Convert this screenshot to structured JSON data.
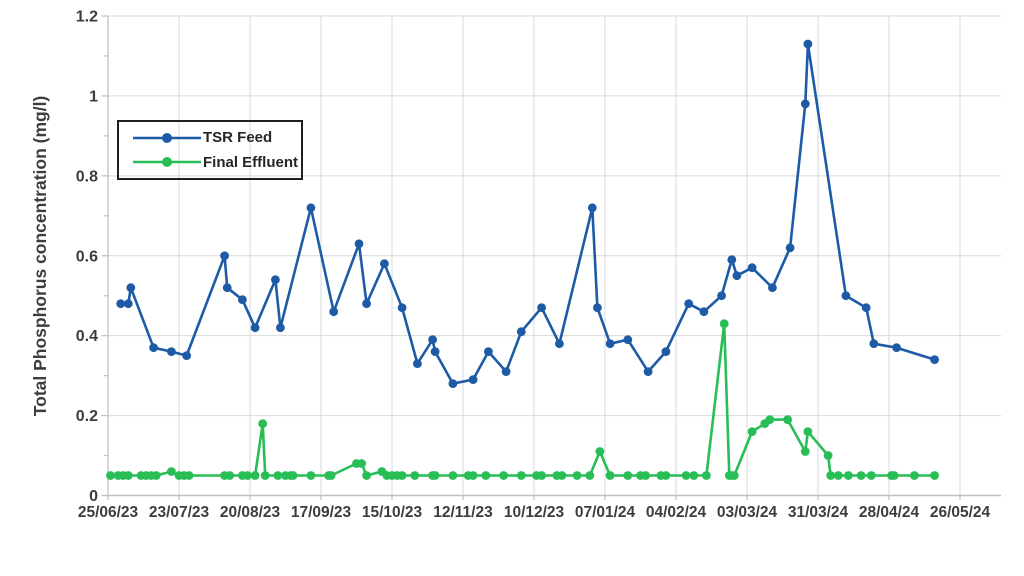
{
  "chart_data": {
    "type": "line",
    "title": "",
    "xlabel": "",
    "ylabel": "Total Phosphorus concentration (mg/l)",
    "ylim": [
      0,
      1.2
    ],
    "y_ticks": [
      0,
      0.2,
      0.4,
      0.6,
      0.8,
      1,
      1.2
    ],
    "y_tick_labels": [
      "0",
      "0.2",
      "0.4",
      "0.6",
      "0.8",
      "1",
      "1.2"
    ],
    "x_tick_labels": [
      "25/06/23",
      "23/07/23",
      "20/08/23",
      "17/09/23",
      "15/10/23",
      "12/11/23",
      "10/12/23",
      "07/01/24",
      "04/02/24",
      "03/03/24",
      "31/03/24",
      "28/04/24",
      "26/05/24"
    ],
    "x_start_date": "25/06/23",
    "x_end_date": "26/05/24",
    "x_tick_interval_days": 28,
    "grid": true,
    "legend_position": "top-left-inside",
    "series": [
      {
        "name": "TSR Feed",
        "color": "#1d5ba6",
        "marker": "circle",
        "points": [
          [
            "30/06/23",
            0.48
          ],
          [
            "03/07/23",
            0.48
          ],
          [
            "04/07/23",
            0.52
          ],
          [
            "13/07/23",
            0.37
          ],
          [
            "20/07/23",
            0.36
          ],
          [
            "26/07/23",
            0.35
          ],
          [
            "10/08/23",
            0.6
          ],
          [
            "11/08/23",
            0.52
          ],
          [
            "17/08/23",
            0.49
          ],
          [
            "22/08/23",
            0.42
          ],
          [
            "30/08/23",
            0.54
          ],
          [
            "01/09/23",
            0.42
          ],
          [
            "13/09/23",
            0.72
          ],
          [
            "22/09/23",
            0.46
          ],
          [
            "02/10/23",
            0.63
          ],
          [
            "05/10/23",
            0.48
          ],
          [
            "12/10/23",
            0.58
          ],
          [
            "19/10/23",
            0.47
          ],
          [
            "25/10/23",
            0.33
          ],
          [
            "31/10/23",
            0.39
          ],
          [
            "01/11/23",
            0.36
          ],
          [
            "08/11/23",
            0.28
          ],
          [
            "16/11/23",
            0.29
          ],
          [
            "22/11/23",
            0.36
          ],
          [
            "29/11/23",
            0.31
          ],
          [
            "05/12/23",
            0.41
          ],
          [
            "13/12/23",
            0.47
          ],
          [
            "20/12/23",
            0.38
          ],
          [
            "02/01/24",
            0.72
          ],
          [
            "04/01/24",
            0.47
          ],
          [
            "09/01/24",
            0.38
          ],
          [
            "16/01/24",
            0.39
          ],
          [
            "24/01/24",
            0.31
          ],
          [
            "31/01/24",
            0.36
          ],
          [
            "09/02/24",
            0.48
          ],
          [
            "15/02/24",
            0.46
          ],
          [
            "22/02/24",
            0.5
          ],
          [
            "26/02/24",
            0.59
          ],
          [
            "28/02/24",
            0.55
          ],
          [
            "05/03/24",
            0.57
          ],
          [
            "13/03/24",
            0.52
          ],
          [
            "20/03/24",
            0.62
          ],
          [
            "26/03/24",
            0.98
          ],
          [
            "27/03/24",
            1.13
          ],
          [
            "11/04/24",
            0.5
          ],
          [
            "19/04/24",
            0.47
          ],
          [
            "22/04/24",
            0.38
          ],
          [
            "01/05/24",
            0.37
          ],
          [
            "16/05/24",
            0.34
          ]
        ]
      },
      {
        "name": "Final Effluent",
        "color": "#28be55",
        "marker": "circle",
        "points": [
          [
            "26/06/23",
            0.05
          ],
          [
            "29/06/23",
            0.05
          ],
          [
            "01/07/23",
            0.05
          ],
          [
            "03/07/23",
            0.05
          ],
          [
            "08/07/23",
            0.05
          ],
          [
            "10/07/23",
            0.05
          ],
          [
            "12/07/23",
            0.05
          ],
          [
            "14/07/23",
            0.05
          ],
          [
            "20/07/23",
            0.06
          ],
          [
            "23/07/23",
            0.05
          ],
          [
            "25/07/23",
            0.05
          ],
          [
            "27/07/23",
            0.05
          ],
          [
            "10/08/23",
            0.05
          ],
          [
            "12/08/23",
            0.05
          ],
          [
            "17/08/23",
            0.05
          ],
          [
            "19/08/23",
            0.05
          ],
          [
            "22/08/23",
            0.05
          ],
          [
            "25/08/23",
            0.18
          ],
          [
            "26/08/23",
            0.05
          ],
          [
            "31/08/23",
            0.05
          ],
          [
            "03/09/23",
            0.05
          ],
          [
            "05/09/23",
            0.05
          ],
          [
            "06/09/23",
            0.05
          ],
          [
            "13/09/23",
            0.05
          ],
          [
            "20/09/23",
            0.05
          ],
          [
            "21/09/23",
            0.05
          ],
          [
            "01/10/23",
            0.08
          ],
          [
            "03/10/23",
            0.08
          ],
          [
            "05/10/23",
            0.05
          ],
          [
            "11/10/23",
            0.06
          ],
          [
            "13/10/23",
            0.05
          ],
          [
            "15/10/23",
            0.05
          ],
          [
            "17/10/23",
            0.05
          ],
          [
            "19/10/23",
            0.05
          ],
          [
            "24/10/23",
            0.05
          ],
          [
            "31/10/23",
            0.05
          ],
          [
            "01/11/23",
            0.05
          ],
          [
            "08/11/23",
            0.05
          ],
          [
            "14/11/23",
            0.05
          ],
          [
            "16/11/23",
            0.05
          ],
          [
            "21/11/23",
            0.05
          ],
          [
            "28/11/23",
            0.05
          ],
          [
            "05/12/23",
            0.05
          ],
          [
            "11/12/23",
            0.05
          ],
          [
            "13/12/23",
            0.05
          ],
          [
            "19/12/23",
            0.05
          ],
          [
            "21/12/23",
            0.05
          ],
          [
            "27/12/23",
            0.05
          ],
          [
            "01/01/24",
            0.05
          ],
          [
            "05/01/24",
            0.11
          ],
          [
            "09/01/24",
            0.05
          ],
          [
            "16/01/24",
            0.05
          ],
          [
            "21/01/24",
            0.05
          ],
          [
            "23/01/24",
            0.05
          ],
          [
            "29/01/24",
            0.05
          ],
          [
            "31/01/24",
            0.05
          ],
          [
            "08/02/24",
            0.05
          ],
          [
            "11/02/24",
            0.05
          ],
          [
            "16/02/24",
            0.05
          ],
          [
            "23/02/24",
            0.43
          ],
          [
            "25/02/24",
            0.05
          ],
          [
            "26/02/24",
            0.05
          ],
          [
            "27/02/24",
            0.05
          ],
          [
            "05/03/24",
            0.16
          ],
          [
            "10/03/24",
            0.18
          ],
          [
            "12/03/24",
            0.19
          ],
          [
            "19/03/24",
            0.19
          ],
          [
            "26/03/24",
            0.11
          ],
          [
            "27/03/24",
            0.16
          ],
          [
            "04/04/24",
            0.1
          ],
          [
            "05/04/24",
            0.05
          ],
          [
            "08/04/24",
            0.05
          ],
          [
            "12/04/24",
            0.05
          ],
          [
            "17/04/24",
            0.05
          ],
          [
            "21/04/24",
            0.05
          ],
          [
            "29/04/24",
            0.05
          ],
          [
            "30/04/24",
            0.05
          ],
          [
            "08/05/24",
            0.05
          ],
          [
            "16/05/24",
            0.05
          ]
        ]
      }
    ]
  },
  "colors": {
    "background": "#ffffff",
    "gridline": "#d9d9d9",
    "axis": "#bfbfbf",
    "tick_text": "#3d3d3d",
    "legend_border": "#1f1f1f"
  }
}
